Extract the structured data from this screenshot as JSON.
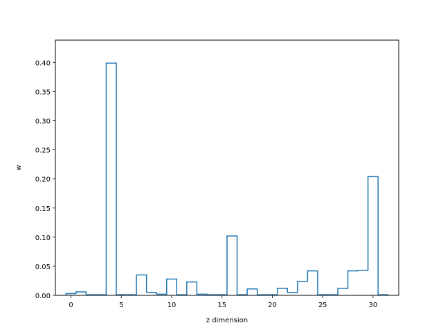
{
  "chart_data": {
    "type": "histogram-step",
    "title": "",
    "xlabel": "z dimension",
    "ylabel": "w",
    "xlim": [
      -1.55,
      32.55
    ],
    "ylim": [
      0,
      0.4385
    ],
    "grid": false,
    "legend": "none",
    "series_color": "#1f77b4",
    "x_ticks": [
      0,
      5,
      10,
      15,
      20,
      25,
      30
    ],
    "x_tick_labels": [
      "0",
      "5",
      "10",
      "15",
      "20",
      "25",
      "30"
    ],
    "y_ticks": [
      0,
      0.05,
      0.1,
      0.15,
      0.2,
      0.25,
      0.3,
      0.35,
      0.4
    ],
    "y_tick_labels": [
      "0.00",
      "0.05",
      "0.10",
      "0.15",
      "0.20",
      "0.25",
      "0.30",
      "0.35",
      "0.40"
    ],
    "bins": [
      0,
      1,
      2,
      3,
      4,
      5,
      6,
      7,
      8,
      9,
      10,
      11,
      12,
      13,
      14,
      15,
      16,
      17,
      18,
      19,
      20,
      21,
      22,
      23,
      24,
      25,
      26,
      27,
      28,
      29,
      30,
      31
    ],
    "values": [
      0.003,
      0.006,
      0.001,
      0.001,
      0.399,
      0.001,
      0.001,
      0.035,
      0.005,
      0.002,
      0.028,
      0.001,
      0.023,
      0.002,
      0.001,
      0.001,
      0.102,
      0.001,
      0.011,
      0.001,
      0.001,
      0.012,
      0.005,
      0.024,
      0.042,
      0.001,
      0.001,
      0.012,
      0.042,
      0.043,
      0.204,
      0.001
    ]
  }
}
